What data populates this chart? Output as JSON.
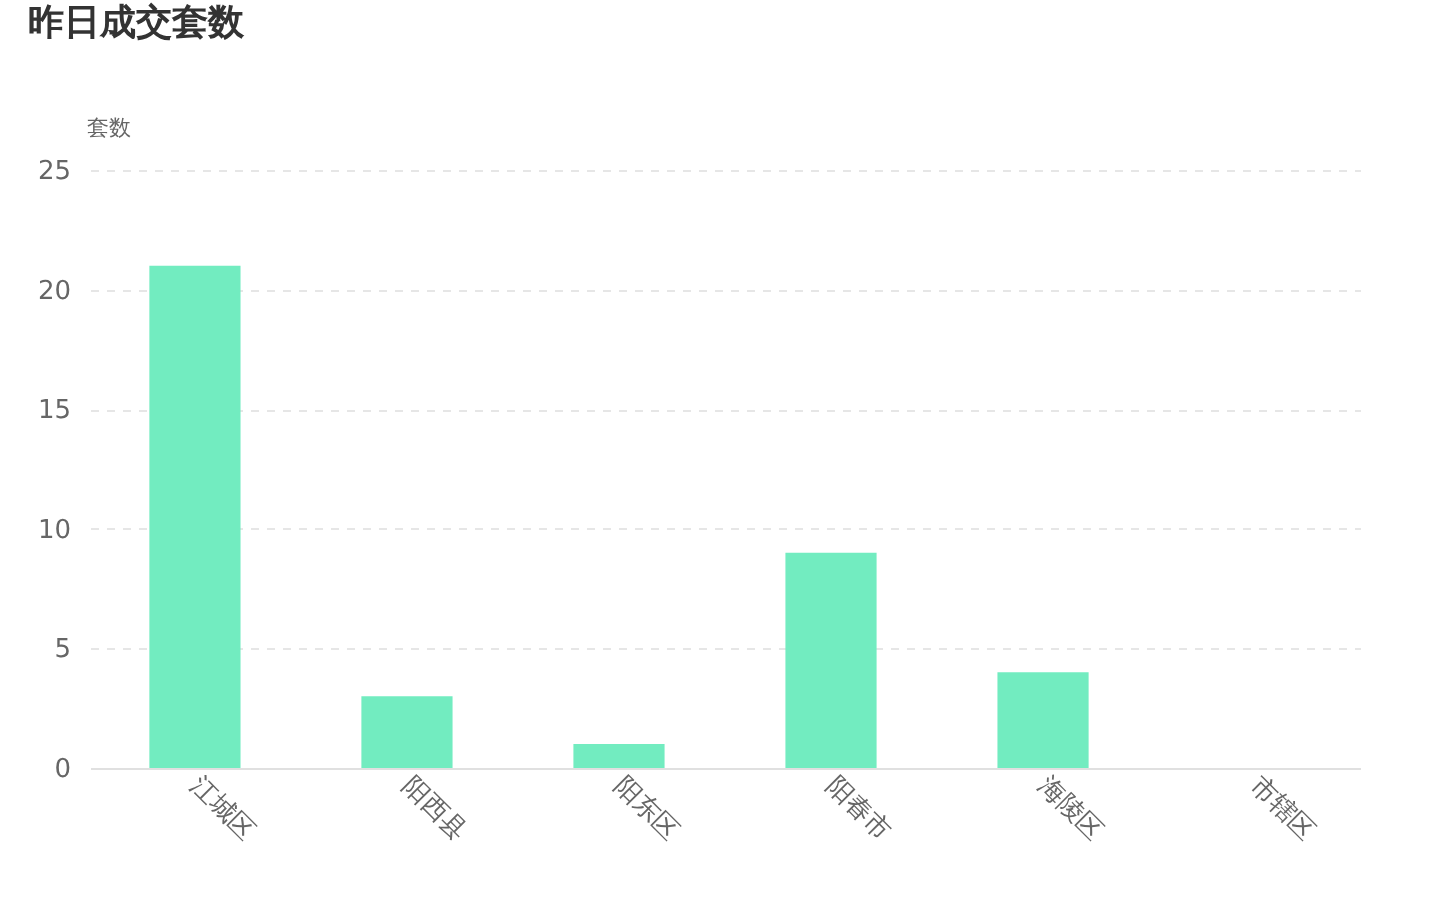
{
  "chart_data": {
    "type": "bar",
    "title": "昨日成交套数",
    "ylabel": "套数",
    "categories": [
      "江城区",
      "阳西县",
      "阳东区",
      "阳春市",
      "海陵区",
      "市辖区"
    ],
    "values": [
      21,
      3,
      1,
      9,
      4,
      0
    ],
    "color": "#72ecc0",
    "ylim": [
      0,
      25
    ],
    "yticks": [
      0,
      5,
      10,
      15,
      20,
      25
    ],
    "grid": "y"
  }
}
